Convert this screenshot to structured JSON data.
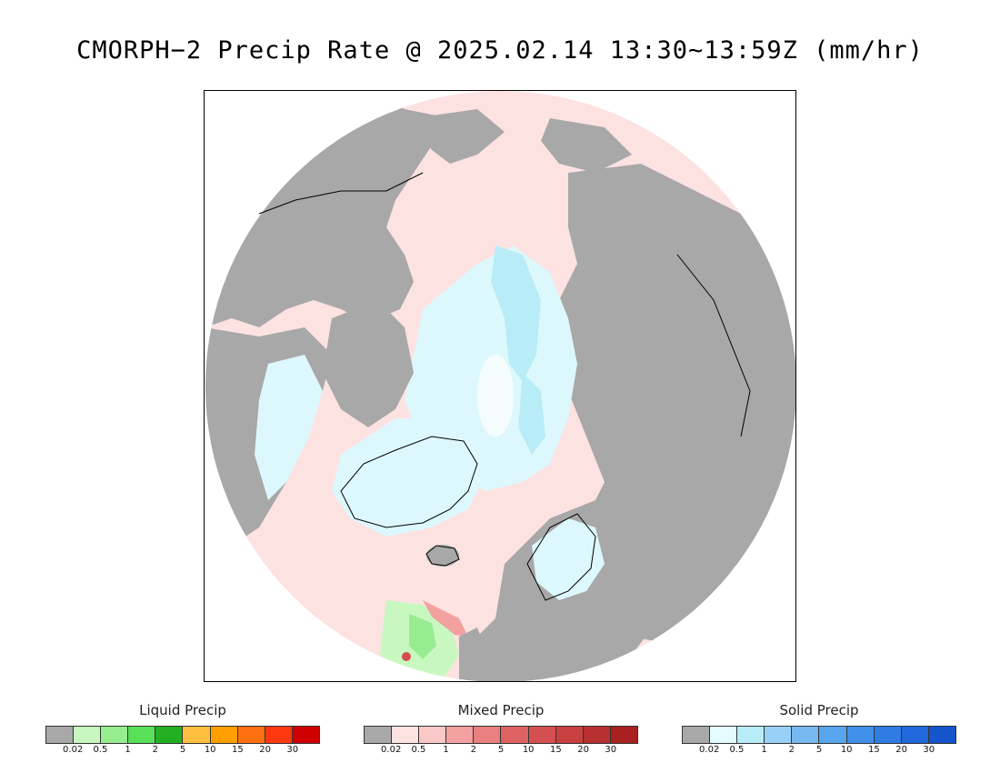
{
  "title": "CMORPH−2 Precip Rate @ 2025.02.14 13:30~13:59Z (mm/hr)",
  "colors": {
    "no_precip": "#a8a8a8",
    "land_snow_mixed_base": "#fde2e2",
    "solid_light": "#ddf8fc",
    "solid_mid": "#b8ecf6",
    "ocean_mixed": "#fde2e2",
    "coastline": "#000000"
  },
  "legends": [
    {
      "title": "Liquid Precip",
      "colors": [
        "#a8a8a8",
        "#c8f8c0",
        "#98ec90",
        "#58e058",
        "#22b022",
        "#ffc040",
        "#ffa000",
        "#ff7010",
        "#ff3810",
        "#d00000"
      ],
      "ticks": [
        "0.02",
        "0.5",
        "1",
        "2",
        "5",
        "10",
        "15",
        "20",
        "30"
      ]
    },
    {
      "title": "Mixed Precip",
      "colors": [
        "#a8a8a8",
        "#fde2e2",
        "#fbc8c8",
        "#f2a0a0",
        "#e88080",
        "#dd6262",
        "#d45050",
        "#c84040",
        "#b83030",
        "#a82020"
      ],
      "ticks": [
        "0.02",
        "0.5",
        "1",
        "2",
        "5",
        "10",
        "15",
        "20",
        "30"
      ]
    },
    {
      "title": "Solid Precip",
      "colors": [
        "#a8a8a8",
        "#e4fcfe",
        "#b8ecf6",
        "#98d0f8",
        "#78b8f0",
        "#58a4ee",
        "#4090ea",
        "#2e7ce4",
        "#2068dc",
        "#1455cc"
      ],
      "ticks": [
        "0.02",
        "0.5",
        "1",
        "2",
        "5",
        "10",
        "15",
        "20",
        "30"
      ]
    }
  ]
}
